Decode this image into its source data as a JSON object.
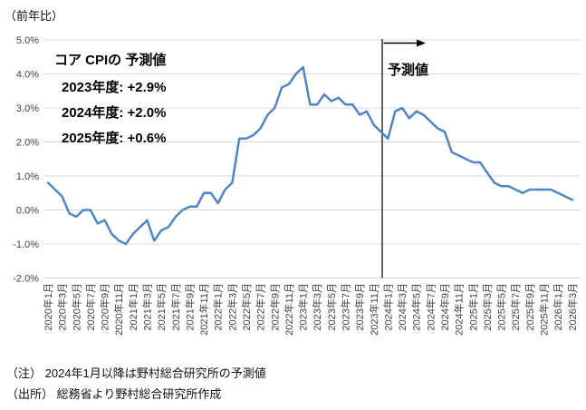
{
  "unit_label": "（前年比）",
  "annotation": {
    "title": "コア CPIの 予測値",
    "lines": [
      "2023年度: +2.9%",
      "2024年度: +2.0%",
      "2025年度: +0.6%"
    ]
  },
  "forecast_label": "予測値",
  "notes": [
    "（注） 2024年1月以降は野村総合研究所の予測値",
    "（出所） 総務省より野村総合研究所作成"
  ],
  "colors": {
    "line": "#4F86C8",
    "grid": "#D9D9D9",
    "axis_text": "#404040",
    "divider": "#000000"
  },
  "chart_data": {
    "type": "line",
    "title": "",
    "ylabel": "（前年比）",
    "ylim": [
      -2.0,
      5.0
    ],
    "grid": true,
    "y_tick_labels": [
      "5.0%",
      "4.0%",
      "3.0%",
      "2.0%",
      "1.0%",
      "0.0%",
      "-1.0%",
      "-2.0%"
    ],
    "x_start": "2020年1月",
    "x_end": "2026年3月",
    "frequency": "monthly",
    "x_tick_labels": [
      "2020年1月",
      "2020年3月",
      "2020年5月",
      "2020年7月",
      "2020年9月",
      "2020年11月",
      "2021年1月",
      "2021年3月",
      "2021年5月",
      "2021年7月",
      "2021年9月",
      "2021年11月",
      "2022年1月",
      "2022年3月",
      "2022年5月",
      "2022年7月",
      "2022年9月",
      "2022年11月",
      "2023年1月",
      "2023年3月",
      "2023年5月",
      "2023年7月",
      "2023年9月",
      "2023年11月",
      "2024年1月",
      "2024年3月",
      "2024年5月",
      "2024年7月",
      "2024年9月",
      "2024年11月",
      "2025年1月",
      "2025年3月",
      "2025年5月",
      "2025年7月",
      "2025年9月",
      "2025年11月",
      "2026年1月",
      "2026年3月"
    ],
    "forecast_start": "2024年1月",
    "forecast_start_index": 48,
    "series": [
      {
        "name": "コアCPI",
        "values": [
          0.8,
          0.6,
          0.4,
          -0.1,
          -0.2,
          0.0,
          0.0,
          -0.4,
          -0.3,
          -0.7,
          -0.9,
          -1.0,
          -0.7,
          -0.5,
          -0.3,
          -0.9,
          -0.6,
          -0.5,
          -0.2,
          0.0,
          0.1,
          0.1,
          0.5,
          0.5,
          0.2,
          0.6,
          0.8,
          2.1,
          2.1,
          2.2,
          2.4,
          2.8,
          3.0,
          3.6,
          3.7,
          4.0,
          4.2,
          3.1,
          3.1,
          3.4,
          3.2,
          3.3,
          3.1,
          3.1,
          2.8,
          2.9,
          2.5,
          2.3,
          2.1,
          2.9,
          3.0,
          2.7,
          2.9,
          2.8,
          2.6,
          2.4,
          2.3,
          1.7,
          1.6,
          1.5,
          1.4,
          1.4,
          1.1,
          0.8,
          0.7,
          0.7,
          0.6,
          0.5,
          0.6,
          0.6,
          0.6,
          0.6,
          0.5,
          0.4,
          0.3
        ]
      }
    ]
  }
}
